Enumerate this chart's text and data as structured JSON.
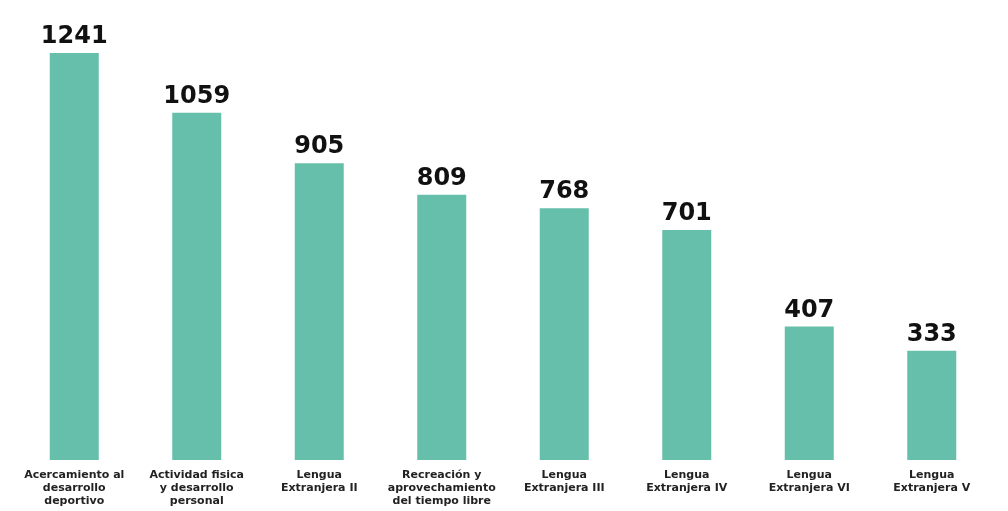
{
  "chart_data": {
    "type": "bar",
    "categories": [
      "Acercamiento al desarrollo deportivo",
      "Actividad fisica y desarrollo personal",
      "Lengua Extranjera II",
      "Recreación y aprovechamiento del tiempo libre",
      "Lengua Extranjera III",
      "Lengua Extranjera IV",
      "Lengua Extranjera VI",
      "Lengua Extranjera V"
    ],
    "values": [
      1241,
      1059,
      905,
      809,
      768,
      701,
      407,
      333
    ],
    "color": "#66bfaa",
    "data_labels": true,
    "grid": false,
    "legend": false
  }
}
